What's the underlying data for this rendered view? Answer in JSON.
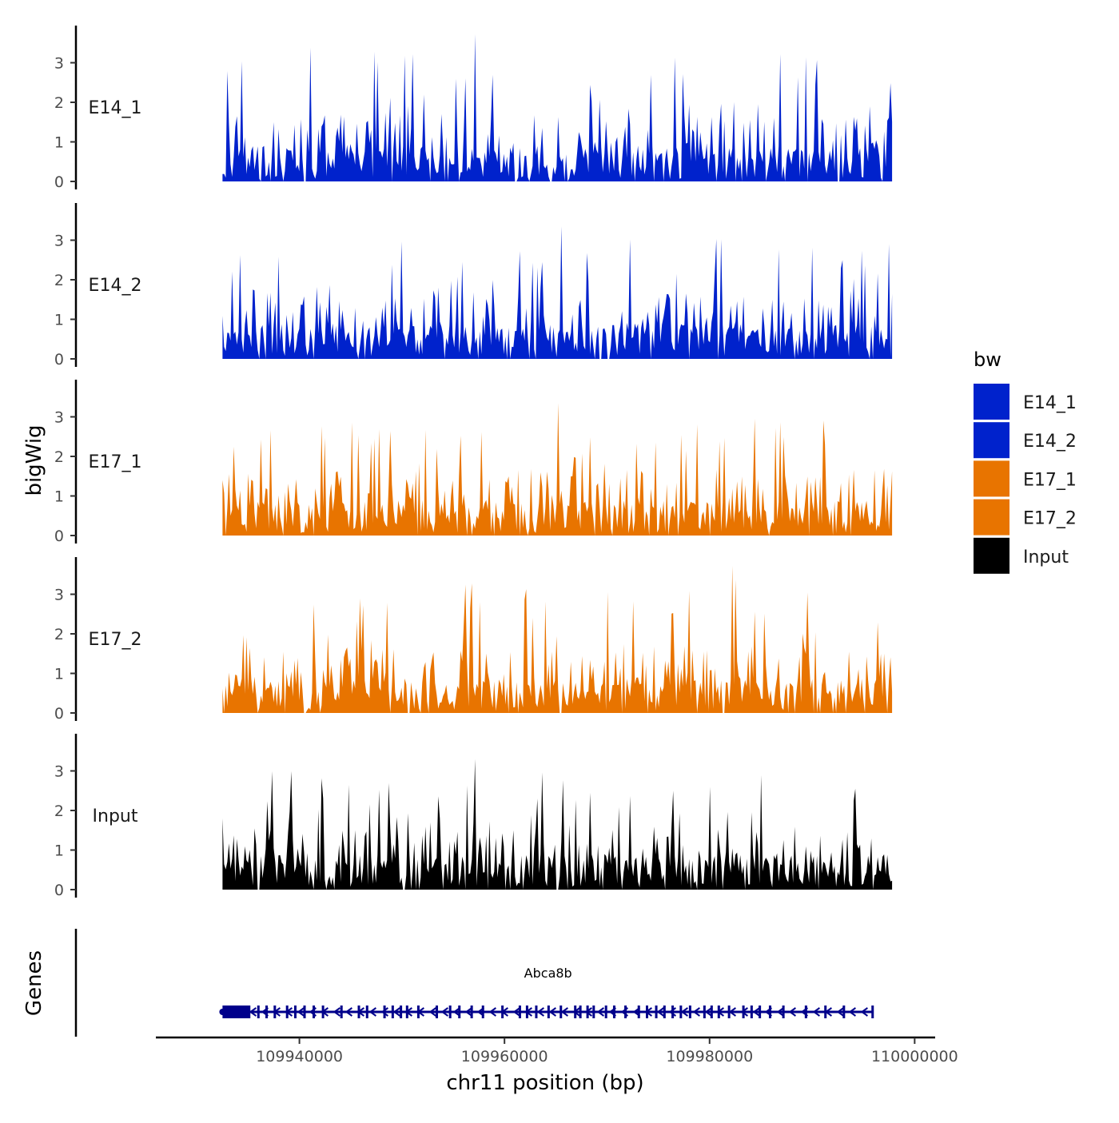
{
  "chart_data": {
    "type": "area",
    "title": "",
    "chromosome": "chr11",
    "xlabel": "chr11 position (bp)",
    "ylabel": "bigWig",
    "genes_label": "Genes",
    "xlim": [
      109926000,
      110002000
    ],
    "data_range": [
      109932500,
      109997800
    ],
    "x_ticks": [
      109940000,
      109960000,
      109980000,
      110000000
    ],
    "x_tick_labels": [
      "109940000",
      "109960000",
      "109980000",
      "110000000"
    ],
    "ylim": [
      0,
      3.9
    ],
    "y_ticks": [
      0,
      1,
      2,
      3
    ],
    "y_tick_labels": [
      "0",
      "1",
      "2",
      "3"
    ],
    "tracks": [
      {
        "name": "E14_1",
        "color": "#0022CC",
        "max": 3.72
      },
      {
        "name": "E14_2",
        "color": "#0022CC",
        "max": 3.35
      },
      {
        "name": "E17_1",
        "color": "#E87400",
        "max": 3.35
      },
      {
        "name": "E17_2",
        "color": "#E87400",
        "max": 3.72
      },
      {
        "name": "Input",
        "color": "#000000",
        "max": 3.3
      }
    ],
    "legend": {
      "title": "bw",
      "position": "right",
      "entries": [
        {
          "label": "E14_1",
          "color": "#0022CC"
        },
        {
          "label": "E14_2",
          "color": "#0022CC"
        },
        {
          "label": "E17_1",
          "color": "#E87400"
        },
        {
          "label": "E17_2",
          "color": "#E87400"
        },
        {
          "label": "Input",
          "color": "#000000"
        }
      ]
    },
    "gene": {
      "name": "Abca8b",
      "start": 109932500,
      "end": 109996000,
      "strand": "-",
      "color": "#00008B",
      "exons": [
        109932500,
        109933600,
        109934200,
        109935100,
        109936000,
        109936800,
        109937600,
        109938800,
        109939600,
        109940500,
        109941400,
        109942300,
        109944100,
        109945800,
        109946600,
        109948300,
        109949100,
        109949900,
        109950500,
        109951600,
        109953400,
        109954700,
        109955600,
        109956800,
        109957900,
        109959800,
        109961500,
        109962200,
        109963100,
        109964300,
        109965500,
        109966900,
        109967400,
        109968100,
        109968700,
        109969900,
        109970700,
        109971800,
        109973100,
        109973900,
        109974800,
        109975600,
        109976400,
        109977200,
        109978100,
        109979500,
        109980200,
        109980900,
        109981900,
        109983300,
        109984100,
        109984900,
        109985900,
        109987200,
        109989400,
        109991300,
        109993100,
        109995900
      ]
    }
  }
}
